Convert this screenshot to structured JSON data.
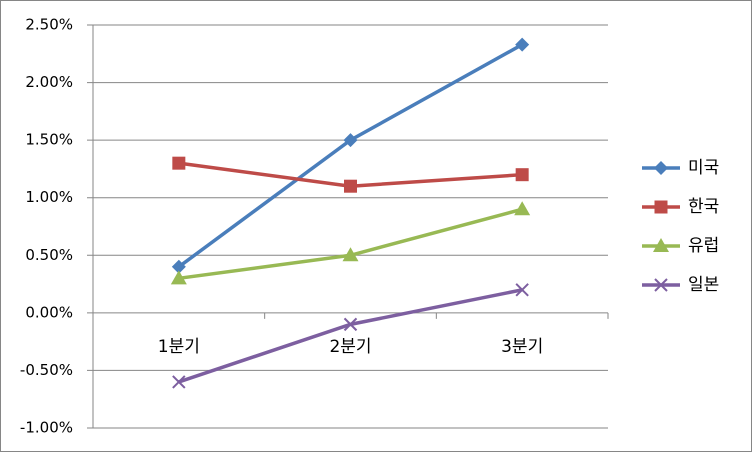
{
  "chart_data": {
    "type": "line",
    "categories": [
      "1분기",
      "2분기",
      "3분기"
    ],
    "series": [
      {
        "name": "미국",
        "color": "#4a7ebb",
        "marker": "diamond",
        "values": [
          0.4,
          1.5,
          2.33
        ]
      },
      {
        "name": "한국",
        "color": "#be4b48",
        "marker": "square",
        "values": [
          1.3,
          1.1,
          1.2
        ]
      },
      {
        "name": "유럽",
        "color": "#98b954",
        "marker": "triangle",
        "values": [
          0.3,
          0.5,
          0.9
        ]
      },
      {
        "name": "일본",
        "color": "#7d5fa0",
        "marker": "x",
        "values": [
          -0.6,
          -0.1,
          0.2
        ]
      }
    ],
    "ylim": [
      -1,
      2.5
    ],
    "yticks": [
      {
        "value": -1,
        "label": "-1.00%"
      },
      {
        "value": -0.5,
        "label": "-0.50%"
      },
      {
        "value": 0,
        "label": "0.00%"
      },
      {
        "value": 0.5,
        "label": "0.50%"
      },
      {
        "value": 1,
        "label": "1.00%"
      },
      {
        "value": 1.5,
        "label": "1.50%"
      },
      {
        "value": 2,
        "label": "2.00%"
      },
      {
        "value": 2.5,
        "label": "2.50%"
      }
    ],
    "grid": true,
    "legend": "right"
  }
}
